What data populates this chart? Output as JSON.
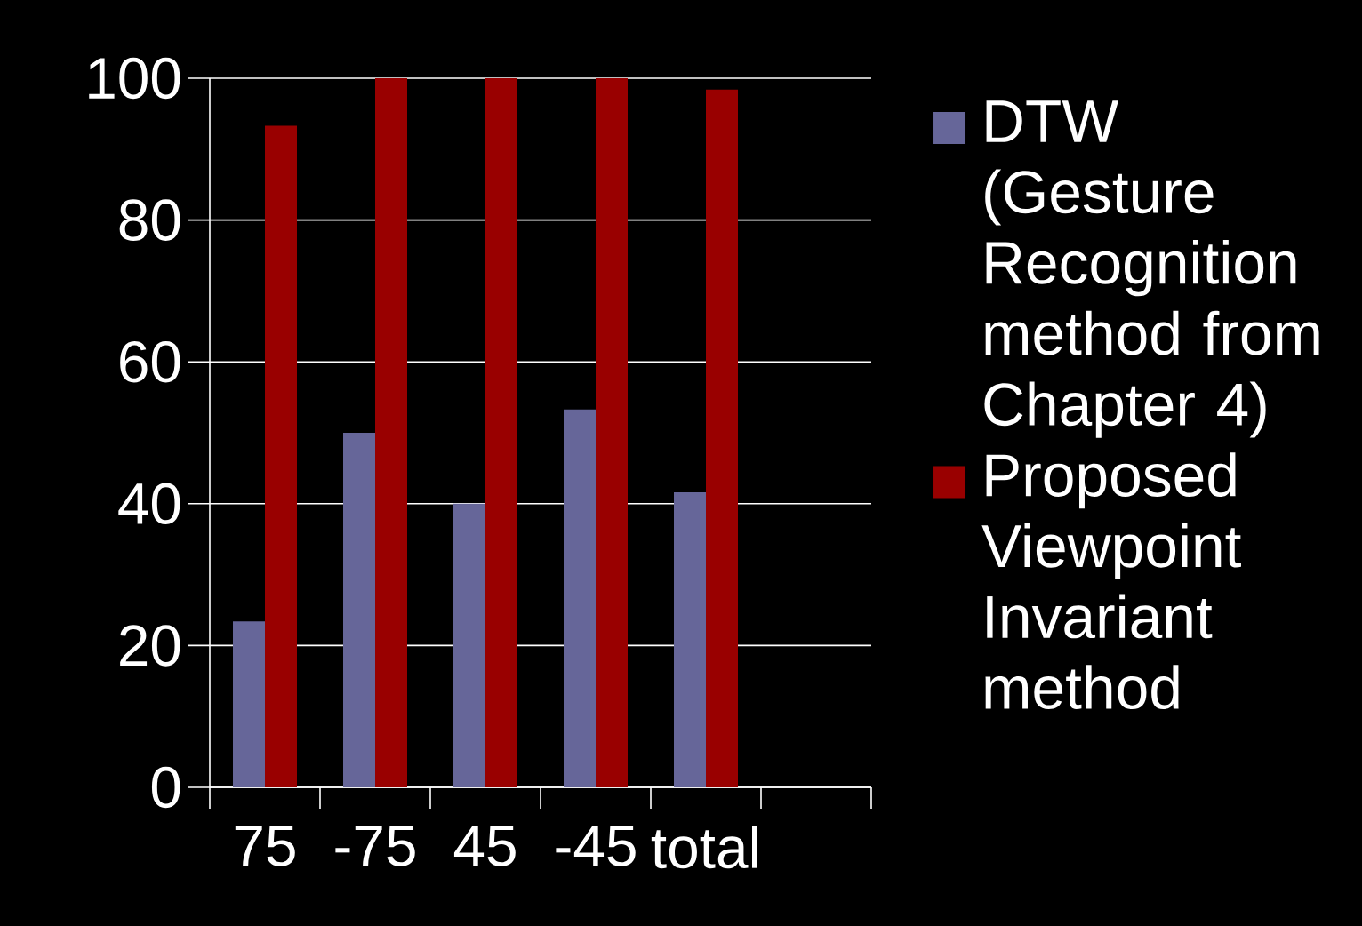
{
  "chart_data": {
    "type": "bar",
    "categories": [
      "75",
      "-75",
      "45",
      "-45",
      "total",
      null
    ],
    "series": [
      {
        "name": "DTW (Gesture Recognition method from Chapter 4)",
        "color": "#666699",
        "values": [
          23.4,
          50,
          40,
          53.3,
          41.6,
          null
        ]
      },
      {
        "name": "Proposed Viewpoint Invariant method",
        "color": "#990000",
        "values": [
          93.3,
          100,
          100,
          100,
          98.4,
          null
        ]
      }
    ],
    "ylim": [
      0,
      100
    ],
    "yticks": [
      0,
      20,
      40,
      60,
      80,
      100
    ],
    "grid": "y",
    "legend": "right"
  }
}
